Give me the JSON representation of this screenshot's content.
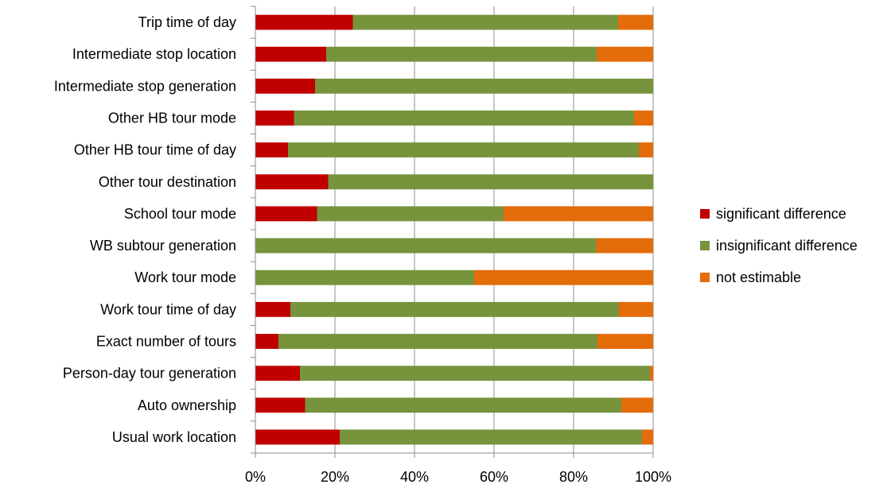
{
  "chart_data": {
    "type": "bar",
    "orientation": "horizontal",
    "stacked": true,
    "normalized": true,
    "title": "",
    "xlabel": "",
    "ylabel": "",
    "xlim": [
      0,
      100
    ],
    "x_ticks": [
      "0%",
      "20%",
      "40%",
      "60%",
      "80%",
      "100%"
    ],
    "grid": "vertical",
    "legend_position": "right",
    "categories": [
      "Trip time of day",
      "Intermediate stop location",
      "Intermediate stop generation",
      "Other HB tour mode",
      "Other HB tour time of day",
      "Other tour destination",
      "School tour mode",
      "WB subtour generation",
      "Work tour mode",
      "Work tour time of day",
      "Exact number of tours",
      "Person-day tour generation",
      "Auto ownership",
      "Usual work location"
    ],
    "series": [
      {
        "name": "significant difference",
        "color": "#c00000",
        "values": [
          24.5,
          17.8,
          15,
          9.7,
          8.2,
          18.3,
          15.5,
          0,
          0,
          8.8,
          5.8,
          11.2,
          12.5,
          21.2
        ]
      },
      {
        "name": "insignificant difference",
        "color": "#77933c",
        "values": [
          66.7,
          68.0,
          85,
          85.5,
          88.2,
          81.7,
          46.9,
          85.7,
          55.0,
          82.6,
          80.2,
          88.0,
          79.5,
          76.0
        ]
      },
      {
        "name": "not estimable",
        "color": "#e46c0a",
        "values": [
          8.8,
          14.2,
          0,
          4.8,
          3.6,
          0,
          37.6,
          14.3,
          45.0,
          8.6,
          14.0,
          0.8,
          8.0,
          2.8
        ]
      }
    ]
  }
}
